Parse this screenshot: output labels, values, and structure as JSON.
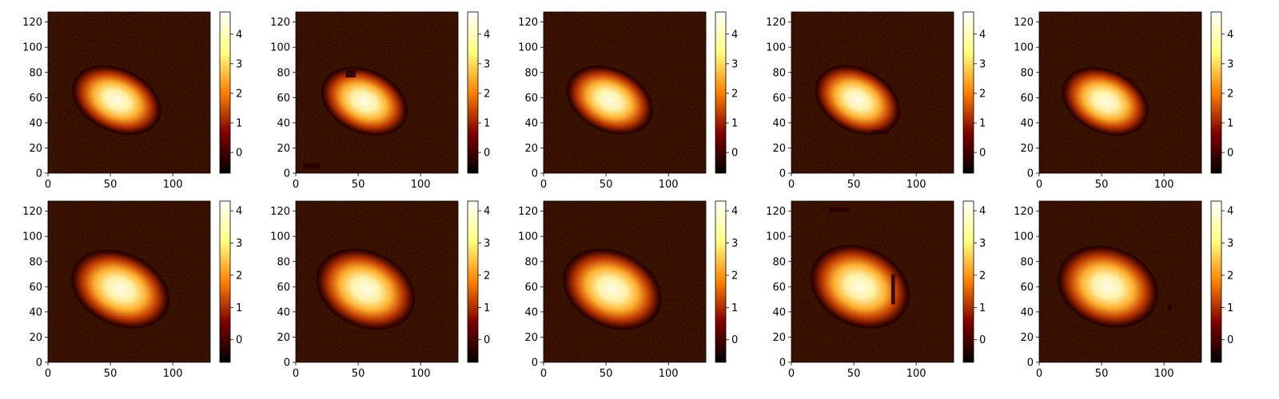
{
  "chart_data": {
    "type": "heatmap",
    "colormap": "afmhot",
    "layout": {
      "rows": 2,
      "cols": 5
    },
    "grid": false,
    "colorbar": "right of each panel",
    "image_extent": {
      "x": [
        0,
        130
      ],
      "y": [
        0,
        128
      ]
    },
    "xticks": [
      0,
      50,
      100
    ],
    "yticks": [
      0,
      20,
      40,
      60,
      80,
      100,
      120
    ],
    "rows": [
      {
        "colorbar_range": [
          -0.7,
          4.75
        ],
        "colorbar_ticks": [
          0,
          1,
          2,
          3,
          4
        ],
        "panels": [
          {
            "blob": {
              "cx": 55,
              "cy": 58,
              "rx": 30,
              "ry": 20,
              "angle_deg": -25
            },
            "artifacts": []
          },
          {
            "blob": {
              "cx": 55,
              "cy": 57,
              "rx": 29,
              "ry": 20,
              "angle_deg": -25
            },
            "artifacts": [
              {
                "x": [
                  40,
                  48
                ],
                "y": [
                  76,
                  82
                ]
              },
              {
                "x": [
                  6,
                  20
                ],
                "y": [
                  3,
                  8
                ]
              }
            ]
          },
          {
            "blob": {
              "cx": 53,
              "cy": 58,
              "rx": 29,
              "ry": 20,
              "angle_deg": -25
            },
            "artifacts": []
          },
          {
            "blob": {
              "cx": 53,
              "cy": 58,
              "rx": 29,
              "ry": 20,
              "angle_deg": -28
            },
            "artifacts": [
              {
                "x": [
                  64,
                  78
                ],
                "y": [
                  31,
                  34
                ]
              }
            ]
          },
          {
            "blob": {
              "cx": 53,
              "cy": 57,
              "rx": 29,
              "ry": 20,
              "angle_deg": -25
            },
            "artifacts": []
          }
        ]
      },
      {
        "colorbar_range": [
          -0.7,
          4.3
        ],
        "colorbar_ticks": [
          0,
          1,
          2,
          3,
          4
        ],
        "panels": [
          {
            "blob": {
              "cx": 58,
              "cy": 58,
              "rx": 33,
              "ry": 23,
              "angle_deg": -25
            },
            "artifacts": []
          },
          {
            "blob": {
              "cx": 56,
              "cy": 58,
              "rx": 33,
              "ry": 24,
              "angle_deg": -25
            },
            "artifacts": []
          },
          {
            "blob": {
              "cx": 55,
              "cy": 58,
              "rx": 33,
              "ry": 24,
              "angle_deg": -25
            },
            "artifacts": []
          },
          {
            "blob": {
              "cx": 55,
              "cy": 60,
              "rx": 33,
              "ry": 25,
              "angle_deg": -25
            },
            "artifacts": [
              {
                "x": [
                  80,
                  83
                ],
                "y": [
                  46,
                  70
                ]
              },
              {
                "x": [
                  30,
                  46
                ],
                "y": [
                  119,
                  123
                ]
              }
            ]
          },
          {
            "blob": {
              "cx": 55,
              "cy": 60,
              "rx": 33,
              "ry": 25,
              "angle_deg": -20
            },
            "artifacts": [
              {
                "x": [
                  103,
                  106
                ],
                "y": [
                  41,
                  46
                ]
              }
            ]
          }
        ]
      }
    ]
  }
}
